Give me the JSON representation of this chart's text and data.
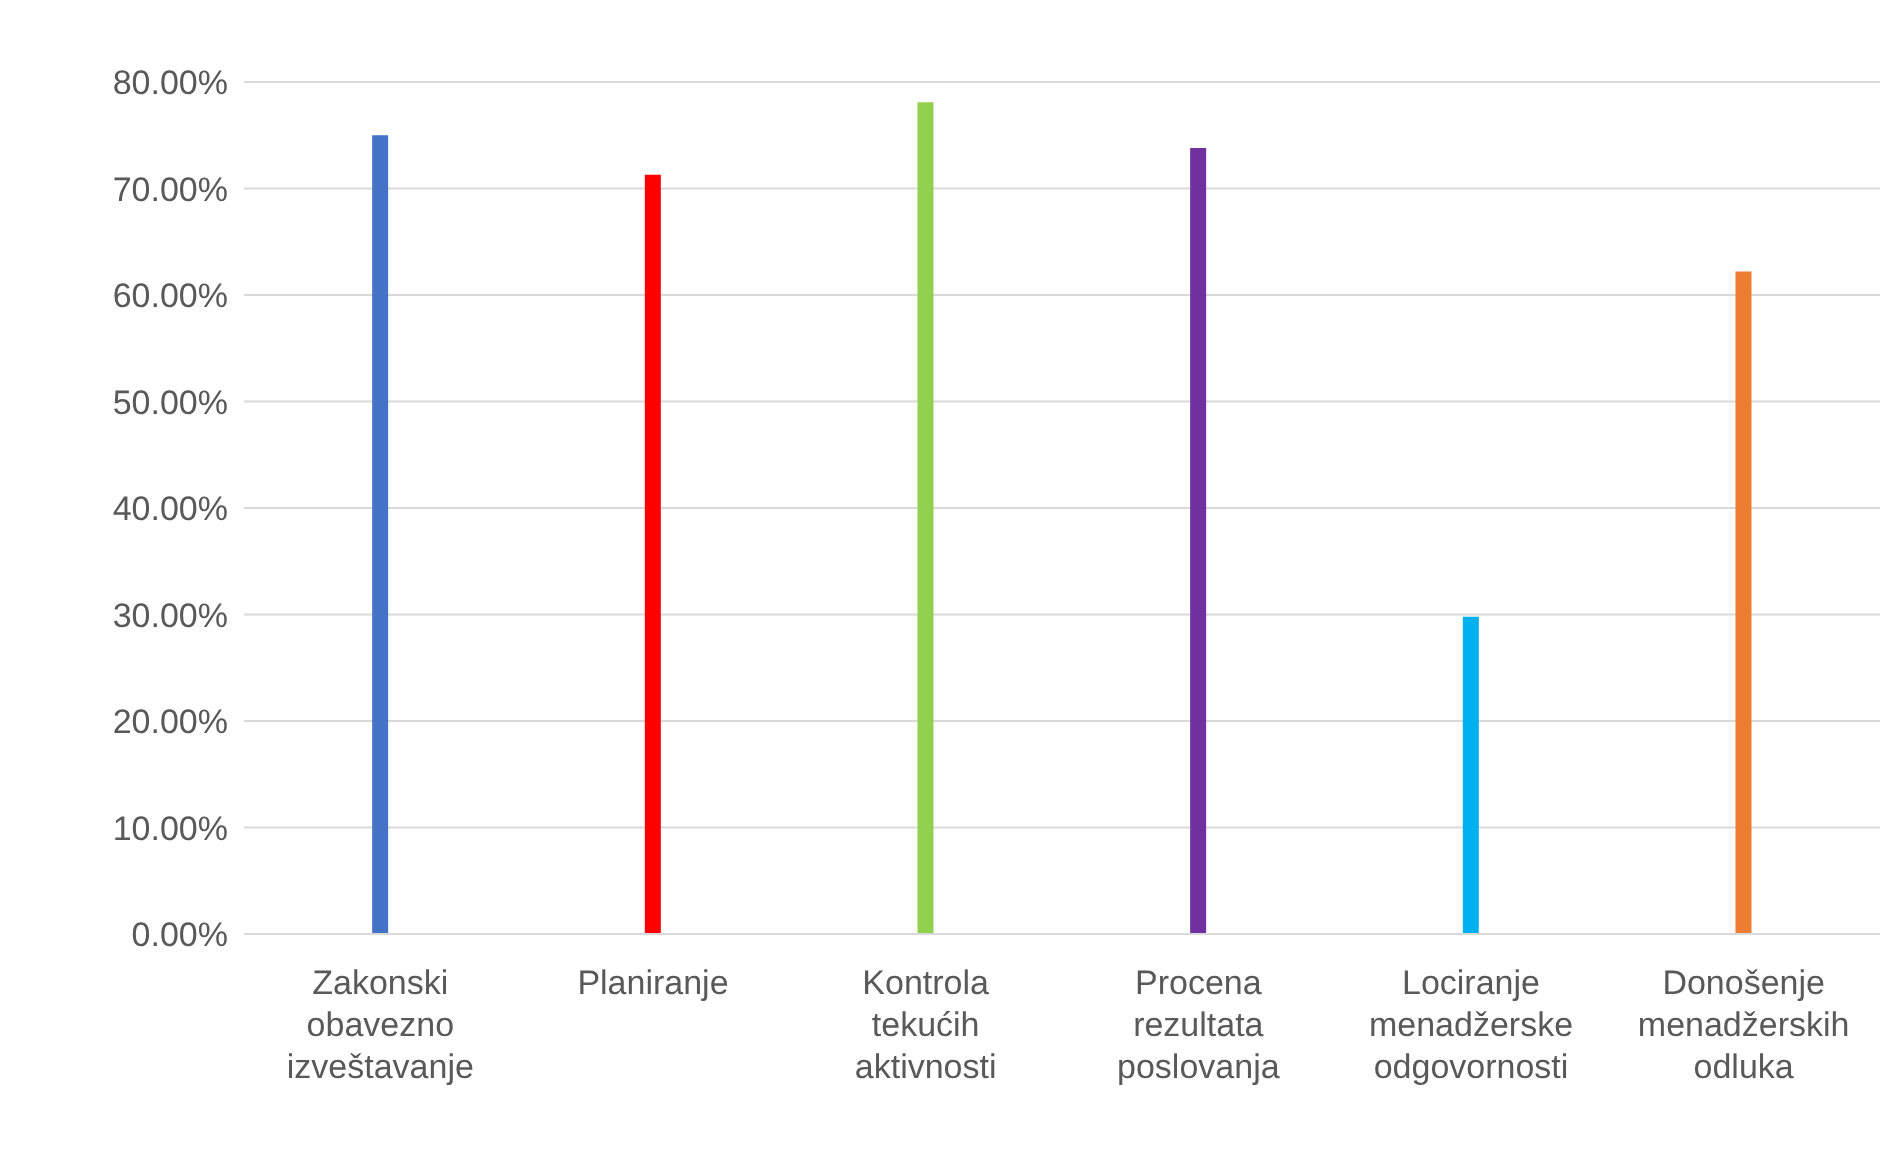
{
  "chart_data": {
    "type": "bar",
    "categories": [
      "Zakonski obavezno izveštavanje",
      "Planiranje",
      "Kontrola tekućih aktivnosti",
      "Procena rezultata poslovanja",
      "Lociranje menadžerske odgovornosti",
      "Donošenje menadžerskih odluka"
    ],
    "values": [
      75.0,
      71.3,
      78.1,
      73.8,
      29.8,
      62.2
    ],
    "colors": [
      "#4472c4",
      "#ff0000",
      "#92d050",
      "#7030a0",
      "#00b0f0",
      "#ed7d31"
    ],
    "ylim": [
      0,
      80
    ],
    "yticks": [
      {
        "value": 0,
        "label": "0.00%"
      },
      {
        "value": 10,
        "label": "10.00%"
      },
      {
        "value": 20,
        "label": "20.00%"
      },
      {
        "value": 30,
        "label": "30.00%"
      },
      {
        "value": 40,
        "label": "40.00%"
      },
      {
        "value": 50,
        "label": "50.00%"
      },
      {
        "value": 60,
        "label": "60.00%"
      },
      {
        "value": 70,
        "label": "70.00%"
      },
      {
        "value": 80,
        "label": "80.00%"
      }
    ],
    "grid": "y"
  }
}
